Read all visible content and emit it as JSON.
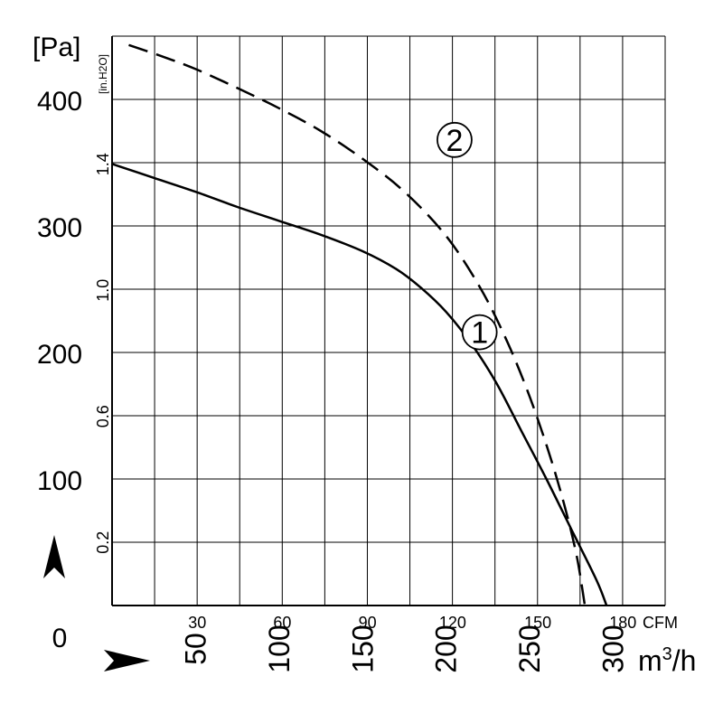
{
  "chart_data": {
    "type": "line",
    "ylabel_pa": "[Pa]",
    "ylabel_inh2o": "[in.H2O]",
    "xlabel_cfm": "CFM",
    "xlabel_m3h": "m3/h",
    "ylim_pa": [
      0,
      450
    ],
    "xlim_m3h": [
      0,
      330
    ],
    "pa_ticks": [
      "0",
      "100",
      "200",
      "300",
      "400"
    ],
    "inh2o_ticks": [
      "0.2",
      "0.6",
      "1.0",
      "1.4"
    ],
    "cfm_ticks": [
      "30",
      "60",
      "90",
      "120",
      "150",
      "180"
    ],
    "m3h_ticks": [
      "50",
      "100",
      "150",
      "200",
      "250",
      "300"
    ],
    "grid": true,
    "series": [
      {
        "name": "1",
        "dash": "solid",
        "points": [
          [
            0,
            349
          ],
          [
            25,
            338
          ],
          [
            50,
            327
          ],
          [
            75,
            315
          ],
          [
            100,
            304
          ],
          [
            125,
            293
          ],
          [
            150,
            280
          ],
          [
            170,
            266
          ],
          [
            185,
            251
          ],
          [
            200,
            232
          ],
          [
            215,
            207
          ],
          [
            230,
            176
          ],
          [
            245,
            138
          ],
          [
            260,
            100
          ],
          [
            275,
            60
          ],
          [
            290,
            20
          ],
          [
            296,
            0
          ]
        ]
      },
      {
        "name": "2",
        "dash": "dashed",
        "points": [
          [
            10,
            443
          ],
          [
            30,
            434
          ],
          [
            50,
            424
          ],
          [
            75,
            409
          ],
          [
            100,
            393
          ],
          [
            125,
            375
          ],
          [
            150,
            353
          ],
          [
            175,
            327
          ],
          [
            200,
            292
          ],
          [
            220,
            252
          ],
          [
            235,
            213
          ],
          [
            248,
            172
          ],
          [
            260,
            127
          ],
          [
            270,
            83
          ],
          [
            278,
            40
          ],
          [
            283,
            0
          ]
        ]
      }
    ]
  }
}
